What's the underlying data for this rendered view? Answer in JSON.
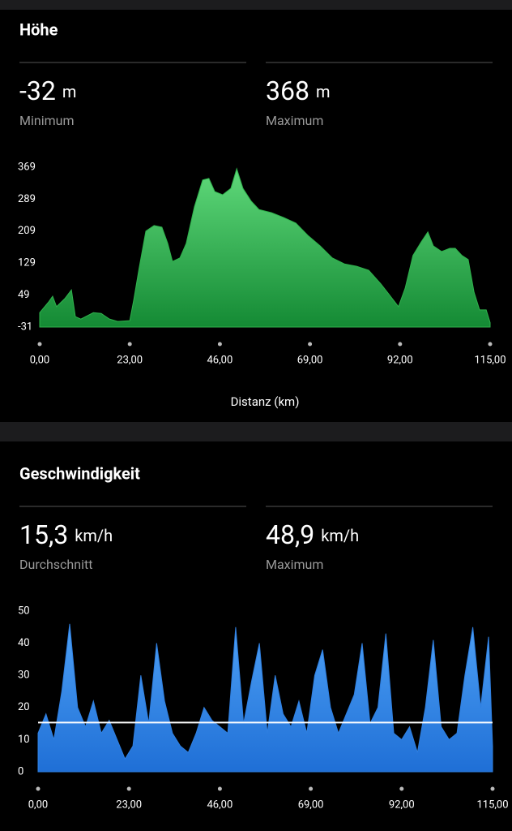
{
  "chart_data": [
    {
      "type": "area",
      "title": "Höhe",
      "stats": [
        {
          "value": -32,
          "unit": "m",
          "name": "Minimum"
        },
        {
          "value": 368,
          "unit": "m",
          "name": "Maximum"
        }
      ],
      "x": [
        0,
        2.3,
        3.3,
        4.3,
        6.4,
        8.1,
        9.1,
        10.5,
        13.7,
        15.7,
        17.8,
        19.9,
        23.0,
        24.0,
        25.4,
        27.1,
        29.2,
        31.2,
        32.7,
        33.9,
        35.8,
        37.4,
        39.5,
        41.6,
        43.2,
        44.7,
        46.7,
        48.8,
        50.3,
        51.9,
        54.0,
        56.0,
        59.2,
        62.3,
        65.4,
        68.5,
        71.6,
        74.7,
        77.8,
        80.9,
        84.0,
        87.1,
        89.1,
        91.6,
        93.3,
        95.3,
        97.4,
        99.1,
        100.5,
        102.6,
        104.7,
        106.1,
        107.8,
        109.4,
        110.9,
        112.3,
        114.0,
        115.0
      ],
      "values": [
        5,
        32,
        46,
        20,
        40,
        62,
        -5,
        -11,
        5,
        3,
        -11,
        -17,
        -15,
        36,
        117,
        209,
        223,
        219,
        178,
        133,
        142,
        178,
        270,
        337,
        341,
        308,
        300,
        316,
        365,
        316,
        284,
        263,
        255,
        243,
        229,
        198,
        172,
        142,
        127,
        121,
        111,
        77,
        52,
        20,
        66,
        148,
        182,
        207,
        172,
        158,
        166,
        166,
        148,
        138,
        56,
        12,
        12,
        -20
      ],
      "color": "#2fb24c",
      "xlabel": "Distanz (km)",
      "xlim": [
        0,
        115
      ],
      "xticks": [
        {
          "value": 0,
          "label": "0,00"
        },
        {
          "value": 23,
          "label": "23,00"
        },
        {
          "value": 46,
          "label": "46,00"
        },
        {
          "value": 69,
          "label": "69,00"
        },
        {
          "value": 92,
          "label": "92,00"
        },
        {
          "value": 115,
          "label": "115,00"
        }
      ],
      "ylim": [
        -31,
        369
      ],
      "yticks": [
        -31,
        49,
        129,
        209,
        289,
        369
      ]
    },
    {
      "type": "area",
      "title": "Geschwindigkeit",
      "stats": [
        {
          "value": 15.3,
          "label": "15,3",
          "unit": "km/h",
          "name": "Durchschnitt"
        },
        {
          "value": 48.9,
          "label": "48,9",
          "unit": "km/h",
          "name": "Maximum"
        }
      ],
      "x": [
        0,
        2,
        4,
        6,
        8,
        10,
        12,
        14,
        16,
        18,
        20,
        22,
        24,
        26,
        28,
        30,
        32,
        34,
        36,
        38,
        40,
        42,
        44,
        46,
        48,
        50,
        52,
        54,
        56,
        58,
        60,
        62,
        64,
        66,
        68,
        70,
        72,
        74,
        76,
        78,
        80,
        82,
        84,
        86,
        88,
        90,
        92,
        94,
        96,
        98,
        100,
        102,
        104,
        106,
        108,
        110,
        112,
        114,
        115
      ],
      "values": [
        12,
        18,
        10,
        25,
        46,
        20,
        14,
        22,
        12,
        16,
        10,
        4,
        8,
        30,
        15,
        40,
        22,
        12,
        8,
        6,
        12,
        20,
        16,
        14,
        12,
        45,
        15,
        28,
        40,
        12,
        30,
        18,
        14,
        22,
        12,
        30,
        38,
        20,
        12,
        18,
        24,
        40,
        15,
        20,
        43,
        12,
        10,
        14,
        6,
        20,
        41,
        14,
        10,
        12,
        30,
        45,
        20,
        42,
        8
      ],
      "color": "#2f7fe0",
      "xlim": [
        0,
        115
      ],
      "xticks": [
        {
          "value": 0,
          "label": "0,00"
        },
        {
          "value": 23,
          "label": "23,00"
        },
        {
          "value": 46,
          "label": "46,00"
        },
        {
          "value": 69,
          "label": "69,00"
        },
        {
          "value": 92,
          "label": "92,00"
        },
        {
          "value": 115,
          "label": "115,00"
        }
      ],
      "ylim": [
        0,
        50
      ],
      "yticks": [
        0,
        10,
        20,
        30,
        40,
        50
      ]
    }
  ]
}
